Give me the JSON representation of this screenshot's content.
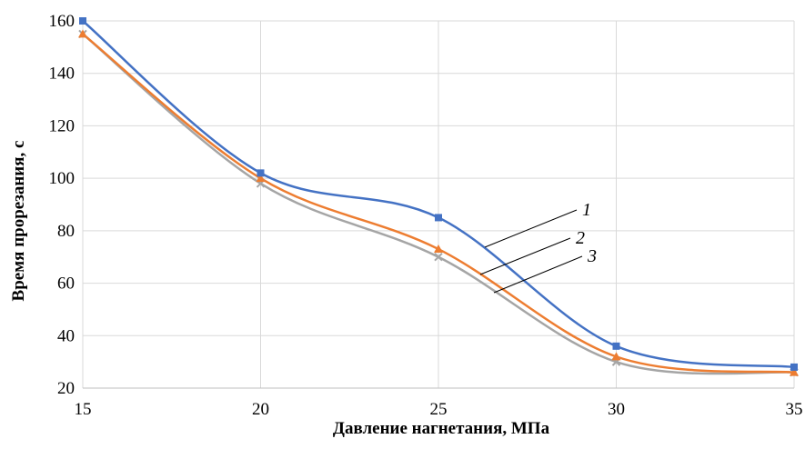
{
  "chart_data": {
    "type": "line",
    "title": "",
    "xlabel": "Давление нагнетания, МПа",
    "ylabel": "Время прорезания, с",
    "x": [
      15,
      20,
      25,
      30,
      35
    ],
    "xlim": [
      15,
      35
    ],
    "ylim": [
      20,
      160
    ],
    "xticks": [
      "15",
      "20",
      "25",
      "30",
      "35"
    ],
    "yticks": [
      "20",
      "40",
      "60",
      "80",
      "100",
      "120",
      "140",
      "160"
    ],
    "grid": true,
    "legend": "none",
    "series": [
      {
        "name": "1",
        "values": [
          160,
          102,
          85,
          36,
          28
        ],
        "color": "#4472C4",
        "marker": "square"
      },
      {
        "name": "2",
        "values": [
          155,
          100,
          73,
          32,
          26
        ],
        "color": "#ED7D31",
        "marker": "triangle"
      },
      {
        "name": "3",
        "values": [
          155,
          98,
          70,
          30,
          26
        ],
        "color": "#A5A5A5",
        "marker": "x"
      }
    ]
  }
}
